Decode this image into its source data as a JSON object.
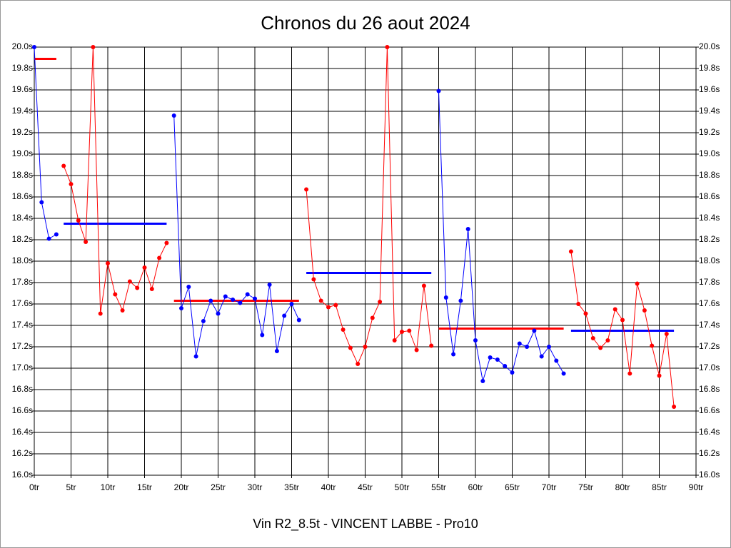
{
  "chart_data": {
    "type": "line",
    "title": "Chronos du 26 aout 2024",
    "x_label": "Vin R2_8.5t - VINCENT LABBE - Pro10",
    "xlim": [
      0,
      90
    ],
    "ylim": [
      16,
      20
    ],
    "grid": true,
    "xticks": [
      {
        "value": 0,
        "label": "0tr"
      },
      {
        "value": 5,
        "label": "5tr"
      },
      {
        "value": 10,
        "label": "10tr"
      },
      {
        "value": 15,
        "label": "15tr"
      },
      {
        "value": 20,
        "label": "20tr"
      },
      {
        "value": 25,
        "label": "25tr"
      },
      {
        "value": 30,
        "label": "30tr"
      },
      {
        "value": 35,
        "label": "35tr"
      },
      {
        "value": 40,
        "label": "40tr"
      },
      {
        "value": 45,
        "label": "45tr"
      },
      {
        "value": 50,
        "label": "50tr"
      },
      {
        "value": 55,
        "label": "55tr"
      },
      {
        "value": 60,
        "label": "60tr"
      },
      {
        "value": 65,
        "label": "65tr"
      },
      {
        "value": 70,
        "label": "70tr"
      },
      {
        "value": 75,
        "label": "75tr"
      },
      {
        "value": 80,
        "label": "80tr"
      },
      {
        "value": 85,
        "label": "85tr"
      },
      {
        "value": 90,
        "label": "90tr"
      }
    ],
    "yticks": [
      {
        "value": 16,
        "label": "16.0s"
      },
      {
        "value": 16.2,
        "label": "16.2s"
      },
      {
        "value": 16.4,
        "label": "16.4s"
      },
      {
        "value": 16.6,
        "label": "16.6s"
      },
      {
        "value": 16.8,
        "label": "16.8s"
      },
      {
        "value": 17,
        "label": "17.0s"
      },
      {
        "value": 17.2,
        "label": "17.2s"
      },
      {
        "value": 17.4,
        "label": "17.4s"
      },
      {
        "value": 17.6,
        "label": "17.6s"
      },
      {
        "value": 17.8,
        "label": "17.8s"
      },
      {
        "value": 18,
        "label": "18.0s"
      },
      {
        "value": 18.2,
        "label": "18.2s"
      },
      {
        "value": 18.4,
        "label": "18.4s"
      },
      {
        "value": 18.6,
        "label": "18.6s"
      },
      {
        "value": 18.8,
        "label": "18.8s"
      },
      {
        "value": 19,
        "label": "19.0s"
      },
      {
        "value": 19.2,
        "label": "19.2s"
      },
      {
        "value": 19.4,
        "label": "19.4s"
      },
      {
        "value": 19.6,
        "label": "19.6s"
      },
      {
        "value": 19.8,
        "label": "19.8s"
      },
      {
        "value": 20,
        "label": "20.0s"
      }
    ],
    "series": [
      {
        "color": "#0000ff",
        "x": [
          0,
          1,
          2,
          3
        ],
        "values": [
          20.0,
          18.55,
          18.21,
          18.25
        ]
      },
      {
        "color": "#ff0000",
        "x": [
          4,
          5,
          6,
          7,
          8,
          9,
          10,
          11,
          12,
          13,
          14,
          15,
          16,
          17,
          18
        ],
        "values": [
          18.89,
          18.72,
          18.38,
          18.18,
          20.0,
          17.51,
          17.98,
          17.69,
          17.54,
          17.81,
          17.75,
          17.94,
          17.74,
          18.03,
          18.17
        ]
      },
      {
        "color": "#0000ff",
        "x": [
          19,
          20,
          21,
          22,
          23,
          24,
          25,
          26,
          27,
          28,
          29,
          30,
          31,
          32,
          33,
          34,
          35,
          36
        ],
        "values": [
          19.36,
          17.56,
          17.76,
          17.11,
          17.44,
          17.63,
          17.51,
          17.67,
          17.64,
          17.61,
          17.69,
          17.65,
          17.31,
          17.78,
          17.16,
          17.49,
          17.6,
          17.45
        ]
      },
      {
        "color": "#ff0000",
        "x": [
          37,
          38,
          39,
          40,
          41,
          42,
          43,
          44,
          45,
          46,
          47,
          48,
          49,
          50,
          51,
          52,
          53,
          54
        ],
        "values": [
          18.67,
          17.83,
          17.63,
          17.57,
          17.59,
          17.36,
          17.19,
          17.04,
          17.2,
          17.47,
          17.62,
          20.0,
          17.26,
          17.34,
          17.35,
          17.17,
          17.77,
          17.21
        ]
      },
      {
        "color": "#0000ff",
        "x": [
          55,
          56,
          57,
          58,
          59,
          60,
          61,
          62,
          63,
          64,
          65,
          66,
          67,
          68,
          69,
          70,
          71,
          72
        ],
        "values": [
          19.59,
          17.66,
          17.13,
          17.63,
          18.3,
          17.26,
          16.88,
          17.1,
          17.08,
          17.02,
          16.96,
          17.23,
          17.2,
          17.35,
          17.11,
          17.2,
          17.07,
          16.95
        ]
      },
      {
        "color": "#ff0000",
        "x": [
          73,
          74,
          75,
          76,
          77,
          78,
          79,
          80,
          81,
          82,
          83,
          84,
          85,
          86,
          87
        ],
        "values": [
          18.09,
          17.6,
          17.51,
          17.28,
          17.19,
          17.26,
          17.55,
          17.45,
          16.95,
          17.79,
          17.54,
          17.21,
          16.93,
          17.32,
          16.64
        ]
      }
    ],
    "averages": [
      {
        "color": "#ff0000",
        "from": 0,
        "to": 3,
        "value": 19.89
      },
      {
        "color": "#0000ff",
        "from": 4,
        "to": 18,
        "value": 18.35
      },
      {
        "color": "#ff0000",
        "from": 19,
        "to": 36,
        "value": 17.63
      },
      {
        "color": "#0000ff",
        "from": 37,
        "to": 54,
        "value": 17.89
      },
      {
        "color": "#ff0000",
        "from": 55,
        "to": 72,
        "value": 17.37
      },
      {
        "color": "#0000ff",
        "from": 73,
        "to": 87,
        "value": 17.35
      }
    ]
  }
}
